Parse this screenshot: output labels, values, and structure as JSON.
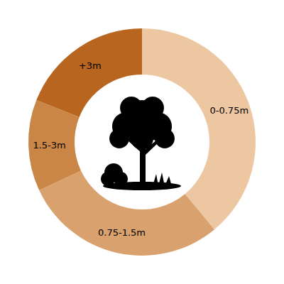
{
  "chart_data": {
    "type": "pie",
    "categories": [
      "0-0.75m",
      "0.75-1.5m",
      "1.5-3m",
      "+3m"
    ],
    "values": [
      39,
      29,
      13,
      19
    ],
    "colors": [
      "#edc6a2",
      "#d9a16e",
      "#c98646",
      "#b8661f"
    ]
  }
}
